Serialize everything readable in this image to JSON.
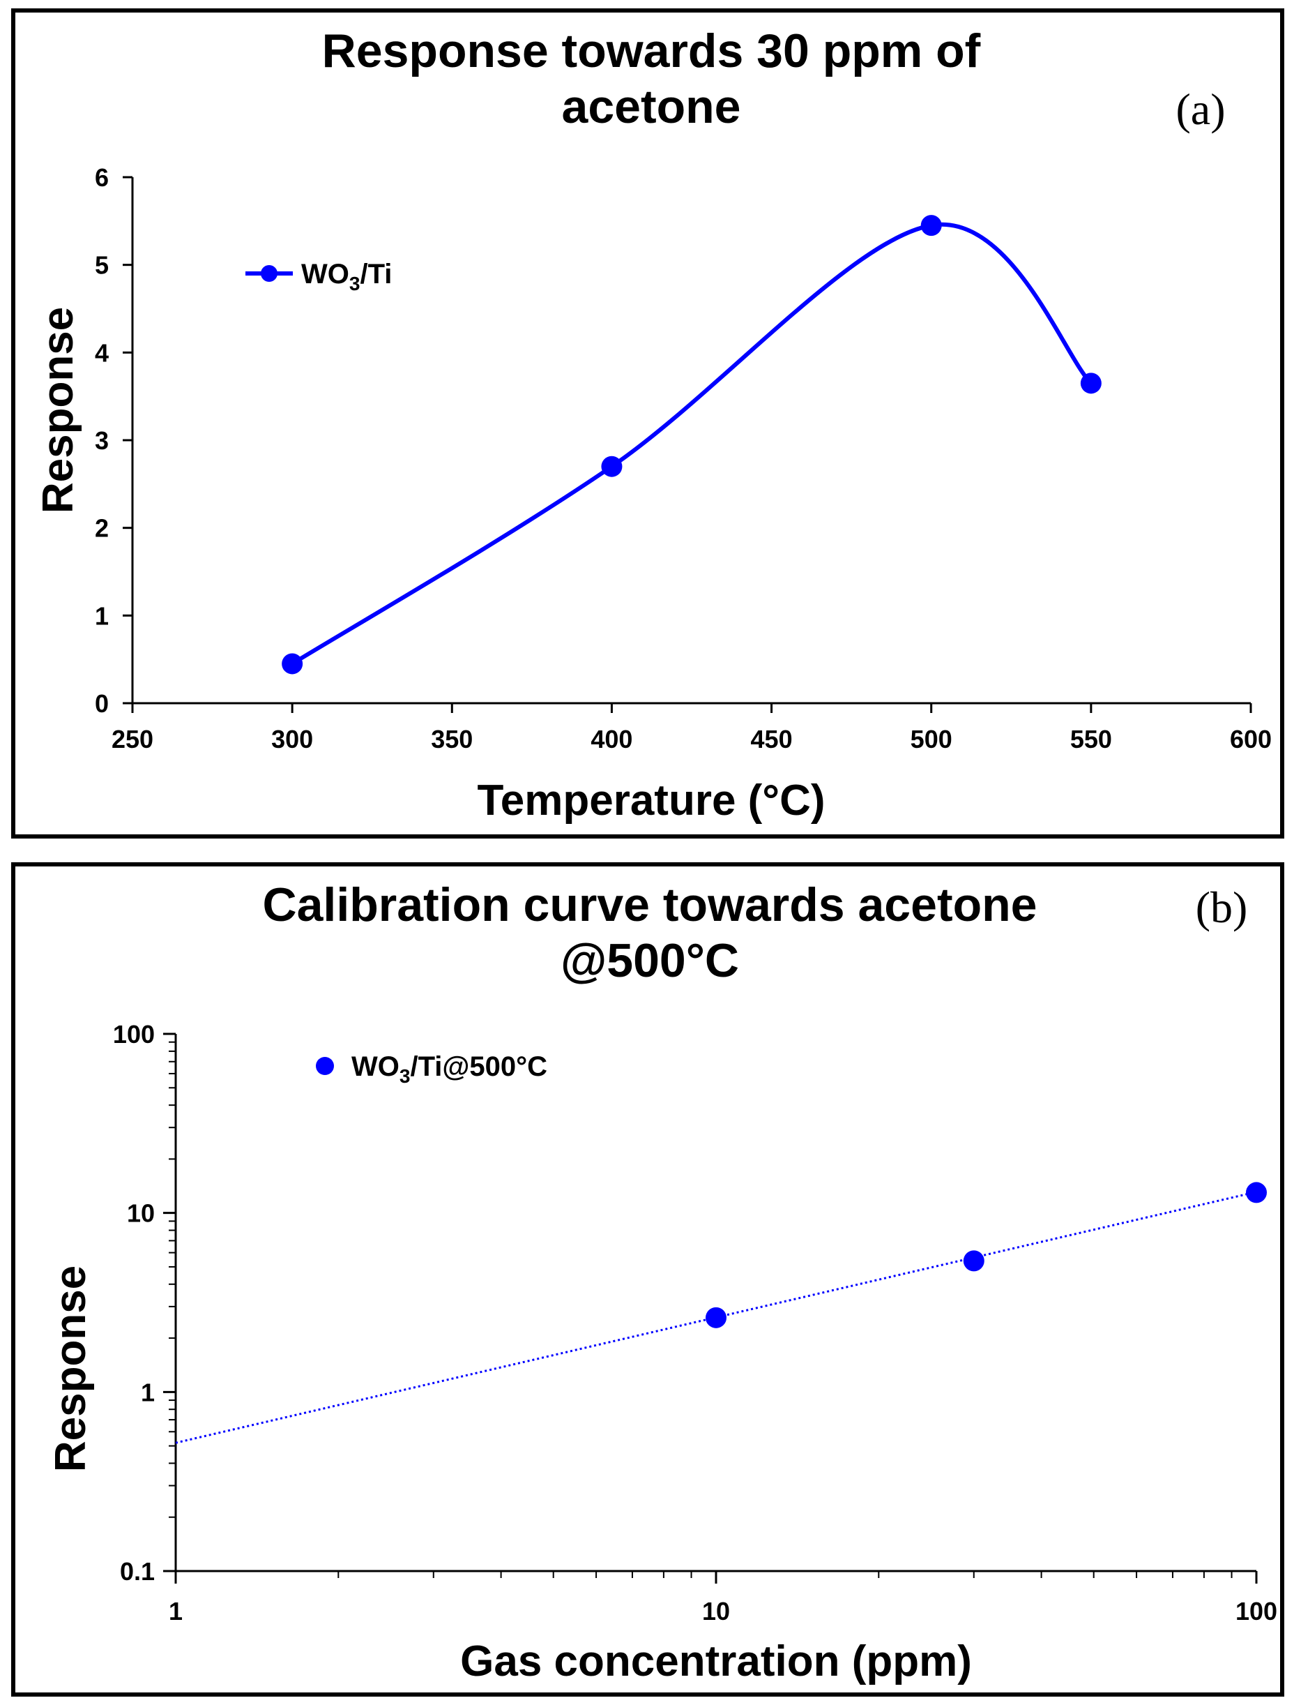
{
  "chart_data": [
    {
      "panel_label": "(a)",
      "type": "line",
      "title": [
        "Response towards 30 ppm  of",
        "acetone"
      ],
      "xlabel": "Temperature (°C)",
      "ylabel": "Response",
      "xlim": [
        250,
        600
      ],
      "ylim": [
        0,
        6
      ],
      "xticks": [
        "250",
        "300",
        "350",
        "400",
        "450",
        "500",
        "550",
        "600"
      ],
      "yticks": [
        "0",
        "1",
        "2",
        "3",
        "4",
        "5",
        "6"
      ],
      "grid": false,
      "legend_position": "top-left",
      "series": [
        {
          "name": "WO3/Ti",
          "legend_parts": [
            "WO",
            "3",
            "/Ti"
          ],
          "color": "#0000ff",
          "x": [
            300,
            400,
            500,
            550
          ],
          "y": [
            0.45,
            2.7,
            5.45,
            3.65
          ]
        }
      ]
    },
    {
      "panel_label": "(b)",
      "type": "scatter",
      "title": [
        "Calibration curve towards acetone",
        "@500°C"
      ],
      "xlabel": "Gas concentration (ppm)",
      "ylabel": "Response",
      "xscale": "log",
      "yscale": "log",
      "xlim": [
        1,
        100
      ],
      "ylim": [
        0.1,
        100
      ],
      "xticks": [
        "1",
        "10",
        "100"
      ],
      "yticks": [
        "0.1",
        "1",
        "10",
        "100"
      ],
      "grid": false,
      "legend_position": "top-left",
      "series": [
        {
          "name": "WO3/Ti@500°C",
          "legend_parts": [
            "WO",
            "3",
            "/Ti@500°C"
          ],
          "color": "#0000ff",
          "x": [
            10,
            30,
            100
          ],
          "y": [
            2.6,
            5.4,
            13
          ]
        }
      ],
      "trendline": {
        "type": "power",
        "style": "dotted",
        "color": "#0000ff",
        "x": [
          1,
          100
        ],
        "y": [
          0.52,
          13.1
        ]
      }
    }
  ]
}
